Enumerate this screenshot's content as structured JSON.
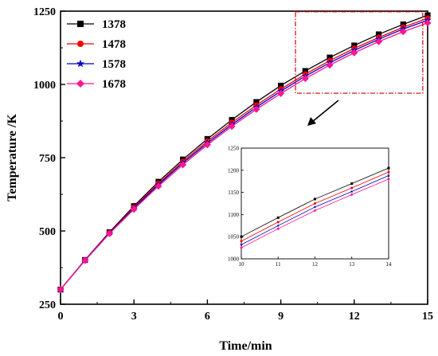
{
  "chart_data": {
    "type": "line",
    "xlabel": "Time/min",
    "ylabel": "Temperature /K",
    "xlim": [
      0,
      15
    ],
    "ylim": [
      250,
      1250
    ],
    "x_ticks": [
      0,
      3,
      6,
      9,
      12,
      15
    ],
    "y_ticks": [
      250,
      500,
      750,
      1000,
      1250
    ],
    "grid": false,
    "legend_position": "top-left",
    "x": [
      0,
      1,
      2,
      3,
      4,
      5,
      6,
      7,
      8,
      9,
      10,
      11,
      12,
      13,
      14,
      15
    ],
    "series": [
      {
        "name": "1378",
        "color": "#000000",
        "marker": "square",
        "values": [
          300,
          401,
          496,
          585,
          668,
          744,
          814,
          879,
          940,
          996,
          1046,
          1092,
          1133,
          1171,
          1205,
          1236
        ]
      },
      {
        "name": "1478",
        "color": "#ff0000",
        "marker": "circle",
        "values": [
          300,
          400,
          494,
          581,
          662,
          737,
          806,
          870,
          929,
          984,
          1035,
          1081,
          1123,
          1160,
          1195,
          1226
        ]
      },
      {
        "name": "1578",
        "color": "#0000cc",
        "marker": "star",
        "values": [
          300,
          400,
          493,
          578,
          658,
          732,
          800,
          863,
          922,
          977,
          1028,
          1074,
          1116,
          1154,
          1189,
          1219
        ]
      },
      {
        "name": "1678",
        "color": "#ff1493",
        "marker": "diamond",
        "values": [
          300,
          399,
          491,
          574,
          653,
          726,
          794,
          857,
          915,
          969,
          1020,
          1066,
          1108,
          1146,
          1180,
          1210
        ]
      }
    ],
    "inset": {
      "xlim": [
        10,
        14
      ],
      "ylim": [
        1000,
        1250
      ],
      "x_ticks": [
        10,
        11,
        12,
        13,
        14
      ],
      "y_ticks": [
        1000,
        1050,
        1100,
        1150,
        1200,
        1250
      ],
      "x": [
        10,
        11,
        12,
        13,
        14
      ],
      "series": [
        {
          "name": "1378",
          "color": "#000000",
          "values": [
            1050,
            1093,
            1135,
            1170,
            1205
          ]
        },
        {
          "name": "1478",
          "color": "#ff0000",
          "values": [
            1040,
            1083,
            1125,
            1160,
            1196
          ]
        },
        {
          "name": "1578",
          "color": "#0000cc",
          "values": [
            1032,
            1075,
            1117,
            1152,
            1188
          ]
        },
        {
          "name": "1678",
          "color": "#ff1493",
          "values": [
            1025,
            1068,
            1109,
            1145,
            1180
          ]
        }
      ]
    },
    "zoom_region": {
      "xlim": [
        9.6,
        14.8
      ],
      "ylim": [
        970,
        1248
      ],
      "color": "#cc0000"
    }
  }
}
